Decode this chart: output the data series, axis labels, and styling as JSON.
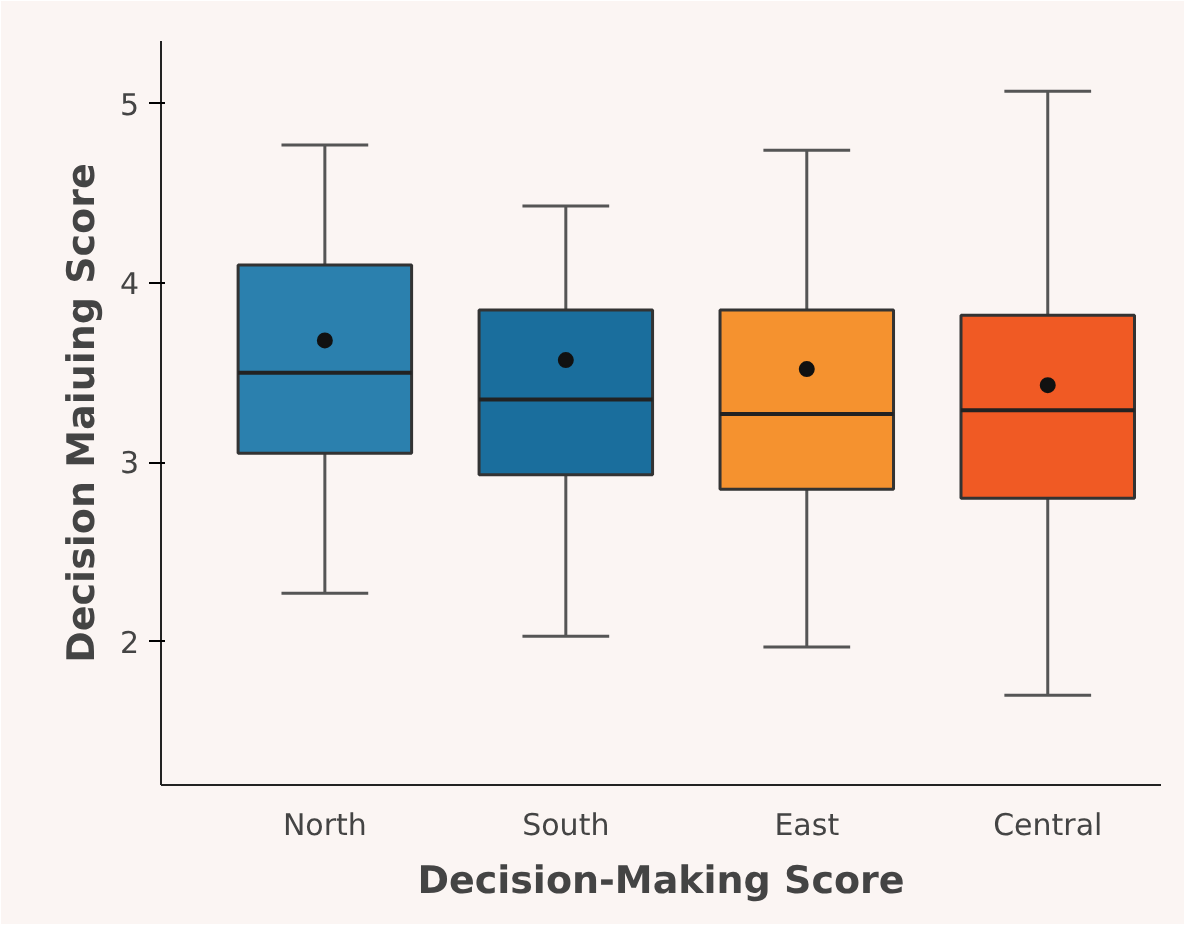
{
  "chart_data": {
    "type": "box",
    "xlabel": "Decision-Making Score",
    "ylabel": "Decision Maiuing Score",
    "categories": [
      "North",
      "South",
      "East",
      "Central"
    ],
    "colors": [
      "#2b80ae",
      "#1a6e9d",
      "#f5922f",
      "#f05a24"
    ],
    "boxes": [
      {
        "low": 2.27,
        "q1": 3.05,
        "median": 3.5,
        "q3": 4.1,
        "high": 4.77,
        "mean": 3.68
      },
      {
        "low": 2.03,
        "q1": 2.93,
        "median": 3.35,
        "q3": 3.85,
        "high": 4.43,
        "mean": 3.57
      },
      {
        "low": 1.97,
        "q1": 2.85,
        "median": 3.27,
        "q3": 3.85,
        "high": 4.74,
        "mean": 3.52
      },
      {
        "low": 1.7,
        "q1": 2.8,
        "median": 3.29,
        "q3": 3.82,
        "high": 5.07,
        "mean": 3.43
      }
    ],
    "ylim": [
      1.2,
      5.35
    ],
    "yticks": [
      2,
      3,
      4,
      5
    ],
    "grid": false
  }
}
